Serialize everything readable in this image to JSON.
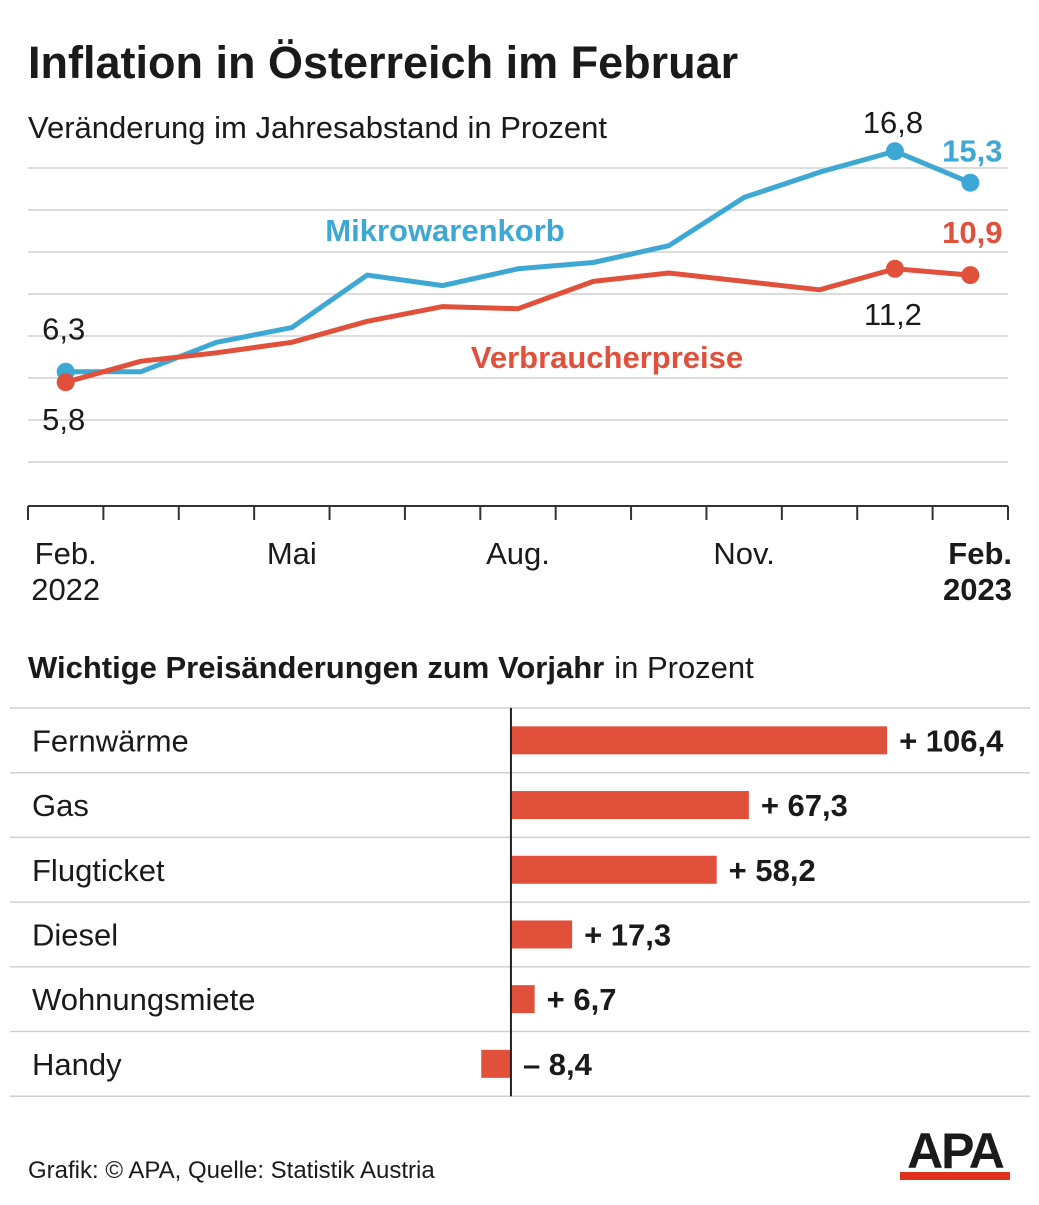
{
  "title": "Inflation in Österreich im Februar",
  "charts": [
    {
      "type": "line",
      "subtitle": "Veränderung im Jahresabstand in Prozent",
      "categories": [
        "Feb. 2022",
        null,
        null,
        "Mai",
        null,
        null,
        "Aug.",
        null,
        null,
        "Nov.",
        null,
        null,
        "Feb. 2023"
      ],
      "series": [
        {
          "name": "Mikrowarenkorb",
          "color": "#3ea8d4",
          "values": [
            6.3,
            6.3,
            7.7,
            8.4,
            10.9,
            10.4,
            11.2,
            11.5,
            12.3,
            14.6,
            15.8,
            16.8,
            15.3
          ],
          "value_labels": [
            "6,3",
            null,
            null,
            null,
            null,
            null,
            null,
            null,
            null,
            null,
            null,
            "16,8",
            "15,3"
          ]
        },
        {
          "name": "Verbraucherpreise",
          "color": "#e0503a",
          "values": [
            5.8,
            6.8,
            7.2,
            7.7,
            8.7,
            9.4,
            9.3,
            10.6,
            11.0,
            10.6,
            10.2,
            11.2,
            10.9
          ],
          "value_labels": [
            "5,8",
            null,
            null,
            null,
            null,
            null,
            null,
            null,
            null,
            null,
            null,
            "11,2",
            "10,9"
          ]
        }
      ],
      "ylim": [
        0,
        17
      ],
      "yticks": [
        2,
        4,
        6,
        8,
        10,
        12,
        14,
        16
      ],
      "grid": true
    },
    {
      "type": "hbar",
      "title": "Wichtige Preisänderungen zum Vorjahr",
      "subtitle": "in Prozent",
      "categories": [
        "Fernwärme",
        "Gas",
        "Flugticket",
        "Diesel",
        "Wohnungsmiete",
        "Handy"
      ],
      "values": [
        106.4,
        67.3,
        58.2,
        17.3,
        6.7,
        -8.4
      ],
      "value_labels": [
        "+ 106,4",
        "+ 67,3",
        "+ 58,2",
        "+ 17,3",
        "+ 6,7",
        "– 8,4"
      ],
      "color": "#e0503a",
      "xlim": [
        -10,
        110
      ]
    }
  ],
  "source": "Grafik: © APA, Quelle: Statistik Austria",
  "logo": "APA"
}
